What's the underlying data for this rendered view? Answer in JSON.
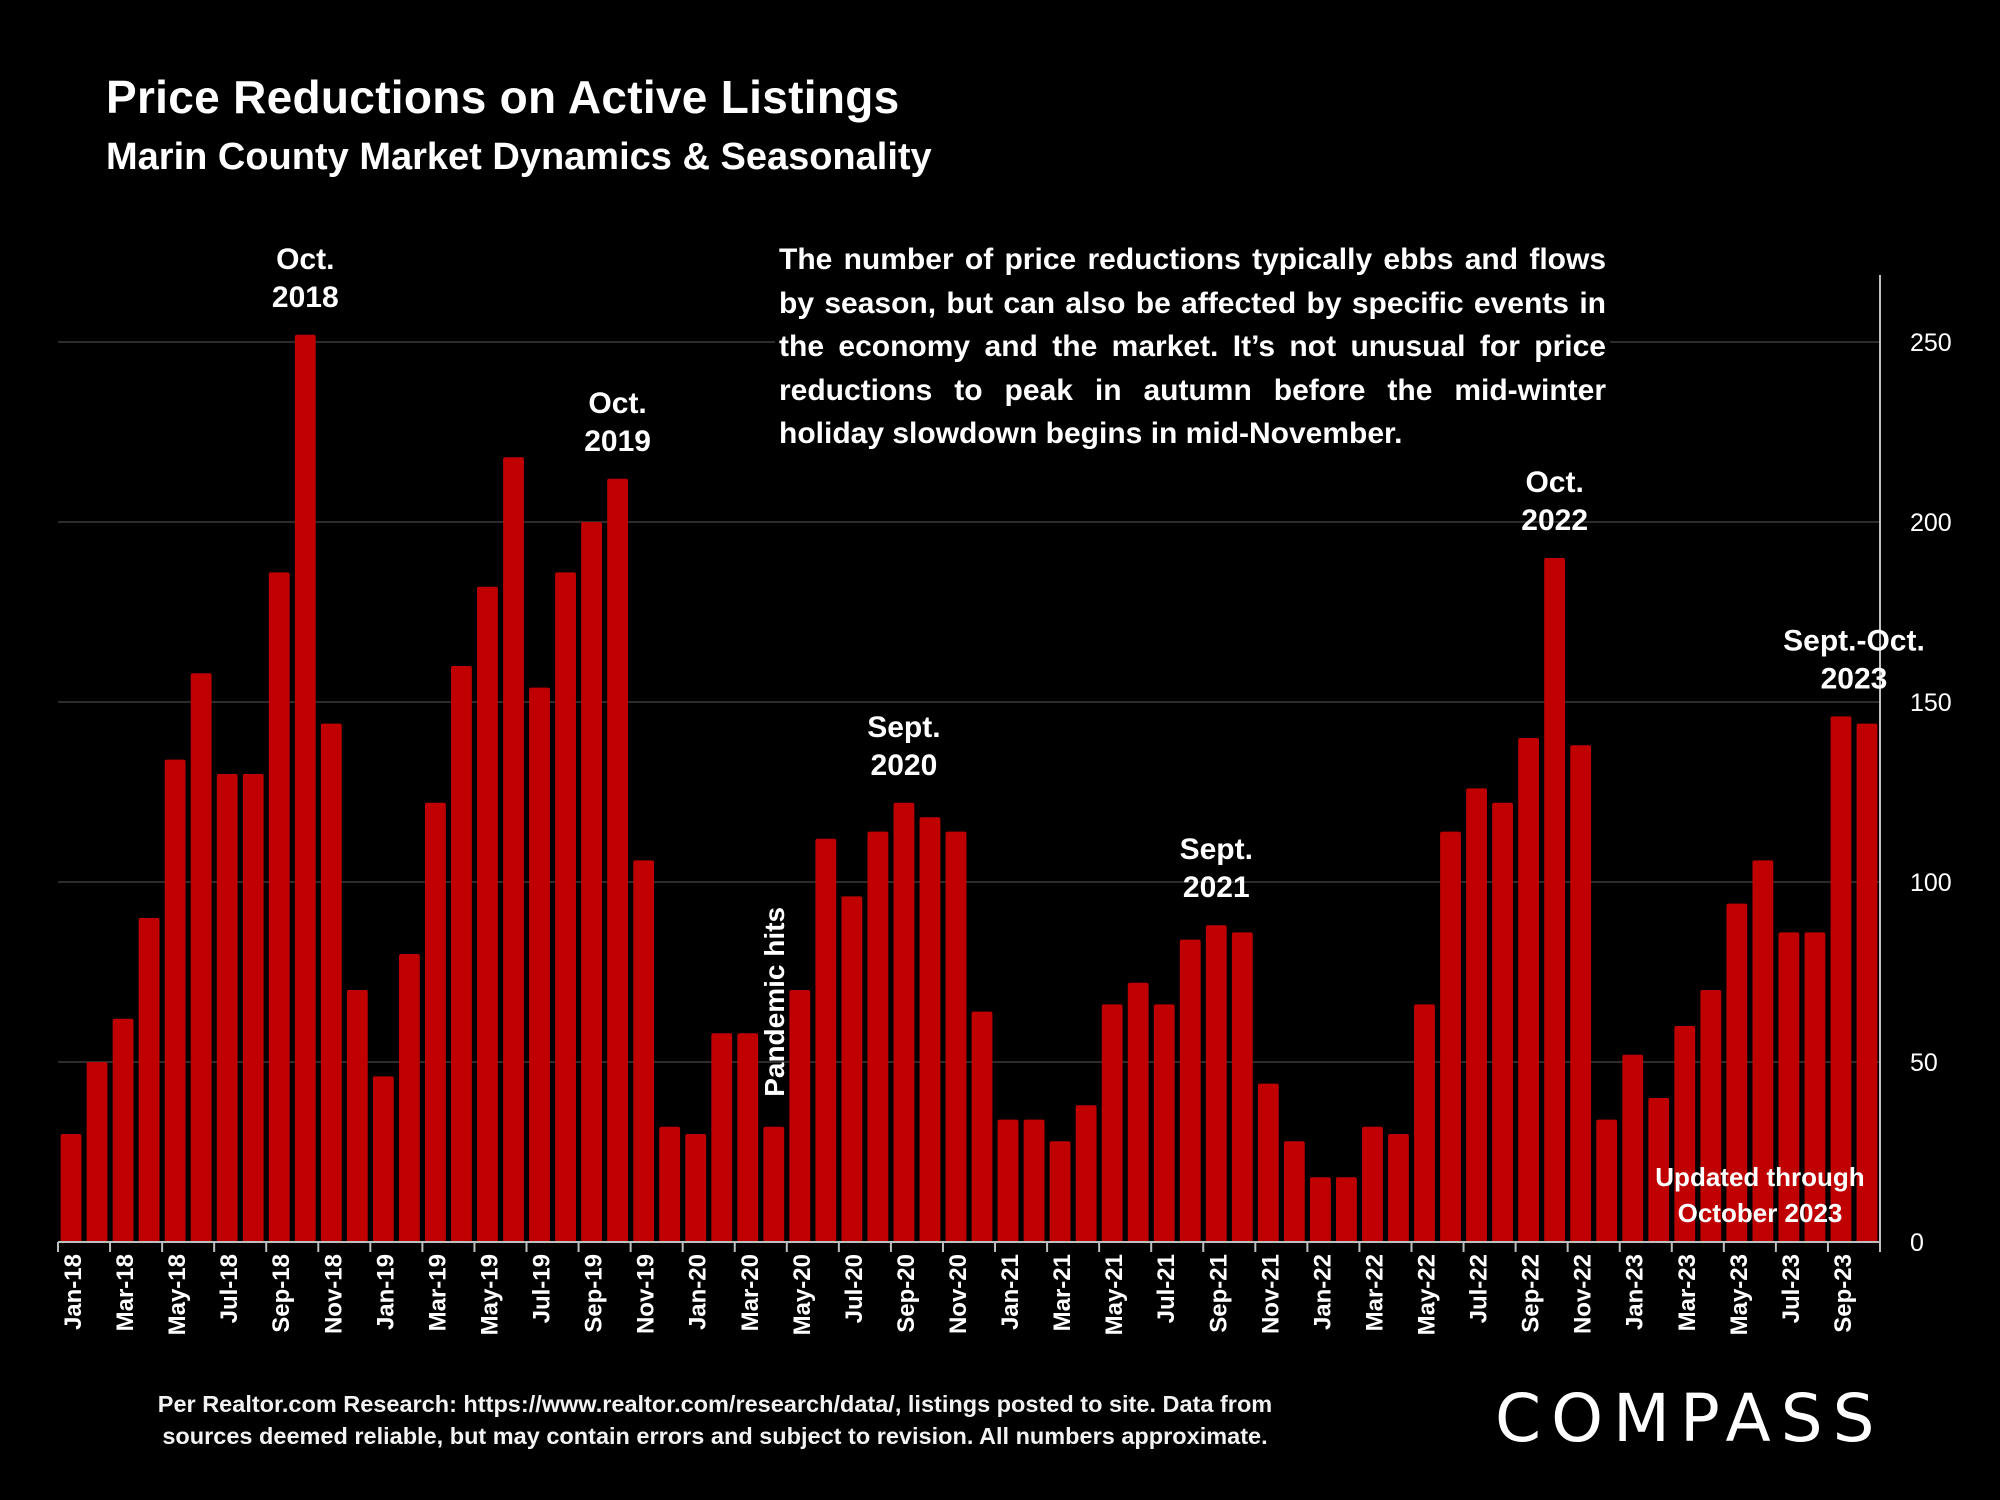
{
  "title": "Price Reductions on Active Listings",
  "subtitle": "Marin County Market Dynamics & Seasonality",
  "note": "The number of price reductions typically ebbs and flows by season, but can also be affected by specific events in the economy and the market. It’s not unusual for price reductions to peak in autumn before the mid-winter holiday slowdown begins in mid-November.",
  "footer": {
    "line1": "Per Realtor.com Research:  https://www.realtor.com/research/data/, listings posted to site. Data from",
    "line2": "sources deemed reliable, but may contain errors and subject to revision. All numbers approximate."
  },
  "logo": "COMPASS",
  "colors": {
    "bar": "#c00000",
    "background": "#000000",
    "text": "#ffffff",
    "grid": "#3a3a3a"
  },
  "chart_data": {
    "type": "bar",
    "x_tick_labels": [
      "Jan-18",
      "Mar-18",
      "May-18",
      "Jul-18",
      "Sep-18",
      "Nov-18",
      "Jan-19",
      "Mar-19",
      "May-19",
      "Jul-19",
      "Sep-19",
      "Nov-19",
      "Jan-20",
      "Mar-20",
      "May-20",
      "Jul-20",
      "Sep-20",
      "Nov-20",
      "Jan-21",
      "Mar-21",
      "May-21",
      "Jul-21",
      "Sep-21",
      "Nov-21",
      "Jan-22",
      "Mar-22",
      "May-22",
      "Jul-22",
      "Sep-22",
      "Nov-22",
      "Jan-23",
      "Mar-23",
      "May-23",
      "Jul-23",
      "Sep-23"
    ],
    "values": [
      30,
      50,
      62,
      90,
      134,
      158,
      130,
      130,
      186,
      252,
      144,
      70,
      46,
      80,
      122,
      160,
      182,
      218,
      154,
      186,
      200,
      212,
      106,
      32,
      30,
      58,
      58,
      32,
      70,
      112,
      96,
      114,
      122,
      118,
      114,
      64,
      34,
      34,
      28,
      38,
      66,
      72,
      66,
      84,
      88,
      86,
      44,
      28,
      18,
      18,
      32,
      30,
      66,
      114,
      126,
      122,
      140,
      190,
      138,
      34,
      52,
      40,
      60,
      70,
      94,
      106,
      86,
      86,
      146,
      144
    ],
    "y_ticks": [
      0,
      50,
      100,
      150,
      200,
      250
    ],
    "ylim": [
      0,
      270
    ],
    "y_axis_position": "right",
    "grid": true,
    "annotations": [
      {
        "lines": [
          "Oct.",
          "2018"
        ],
        "index": 9
      },
      {
        "lines": [
          "Oct.",
          "2019"
        ],
        "index": 21
      },
      {
        "lines": [
          "Sept.",
          "2020"
        ],
        "index": 32
      },
      {
        "lines": [
          "Sept.",
          "2021"
        ],
        "index": 44
      },
      {
        "lines": [
          "Oct.",
          "2022"
        ],
        "index": 57
      },
      {
        "lines": [
          "Sept.-Oct.",
          "2023"
        ],
        "index": 68.5
      }
    ],
    "pandemic_label": {
      "text": "Pandemic hits",
      "index": 27
    },
    "updated_label": [
      "Updated through",
      "October 2023"
    ]
  }
}
